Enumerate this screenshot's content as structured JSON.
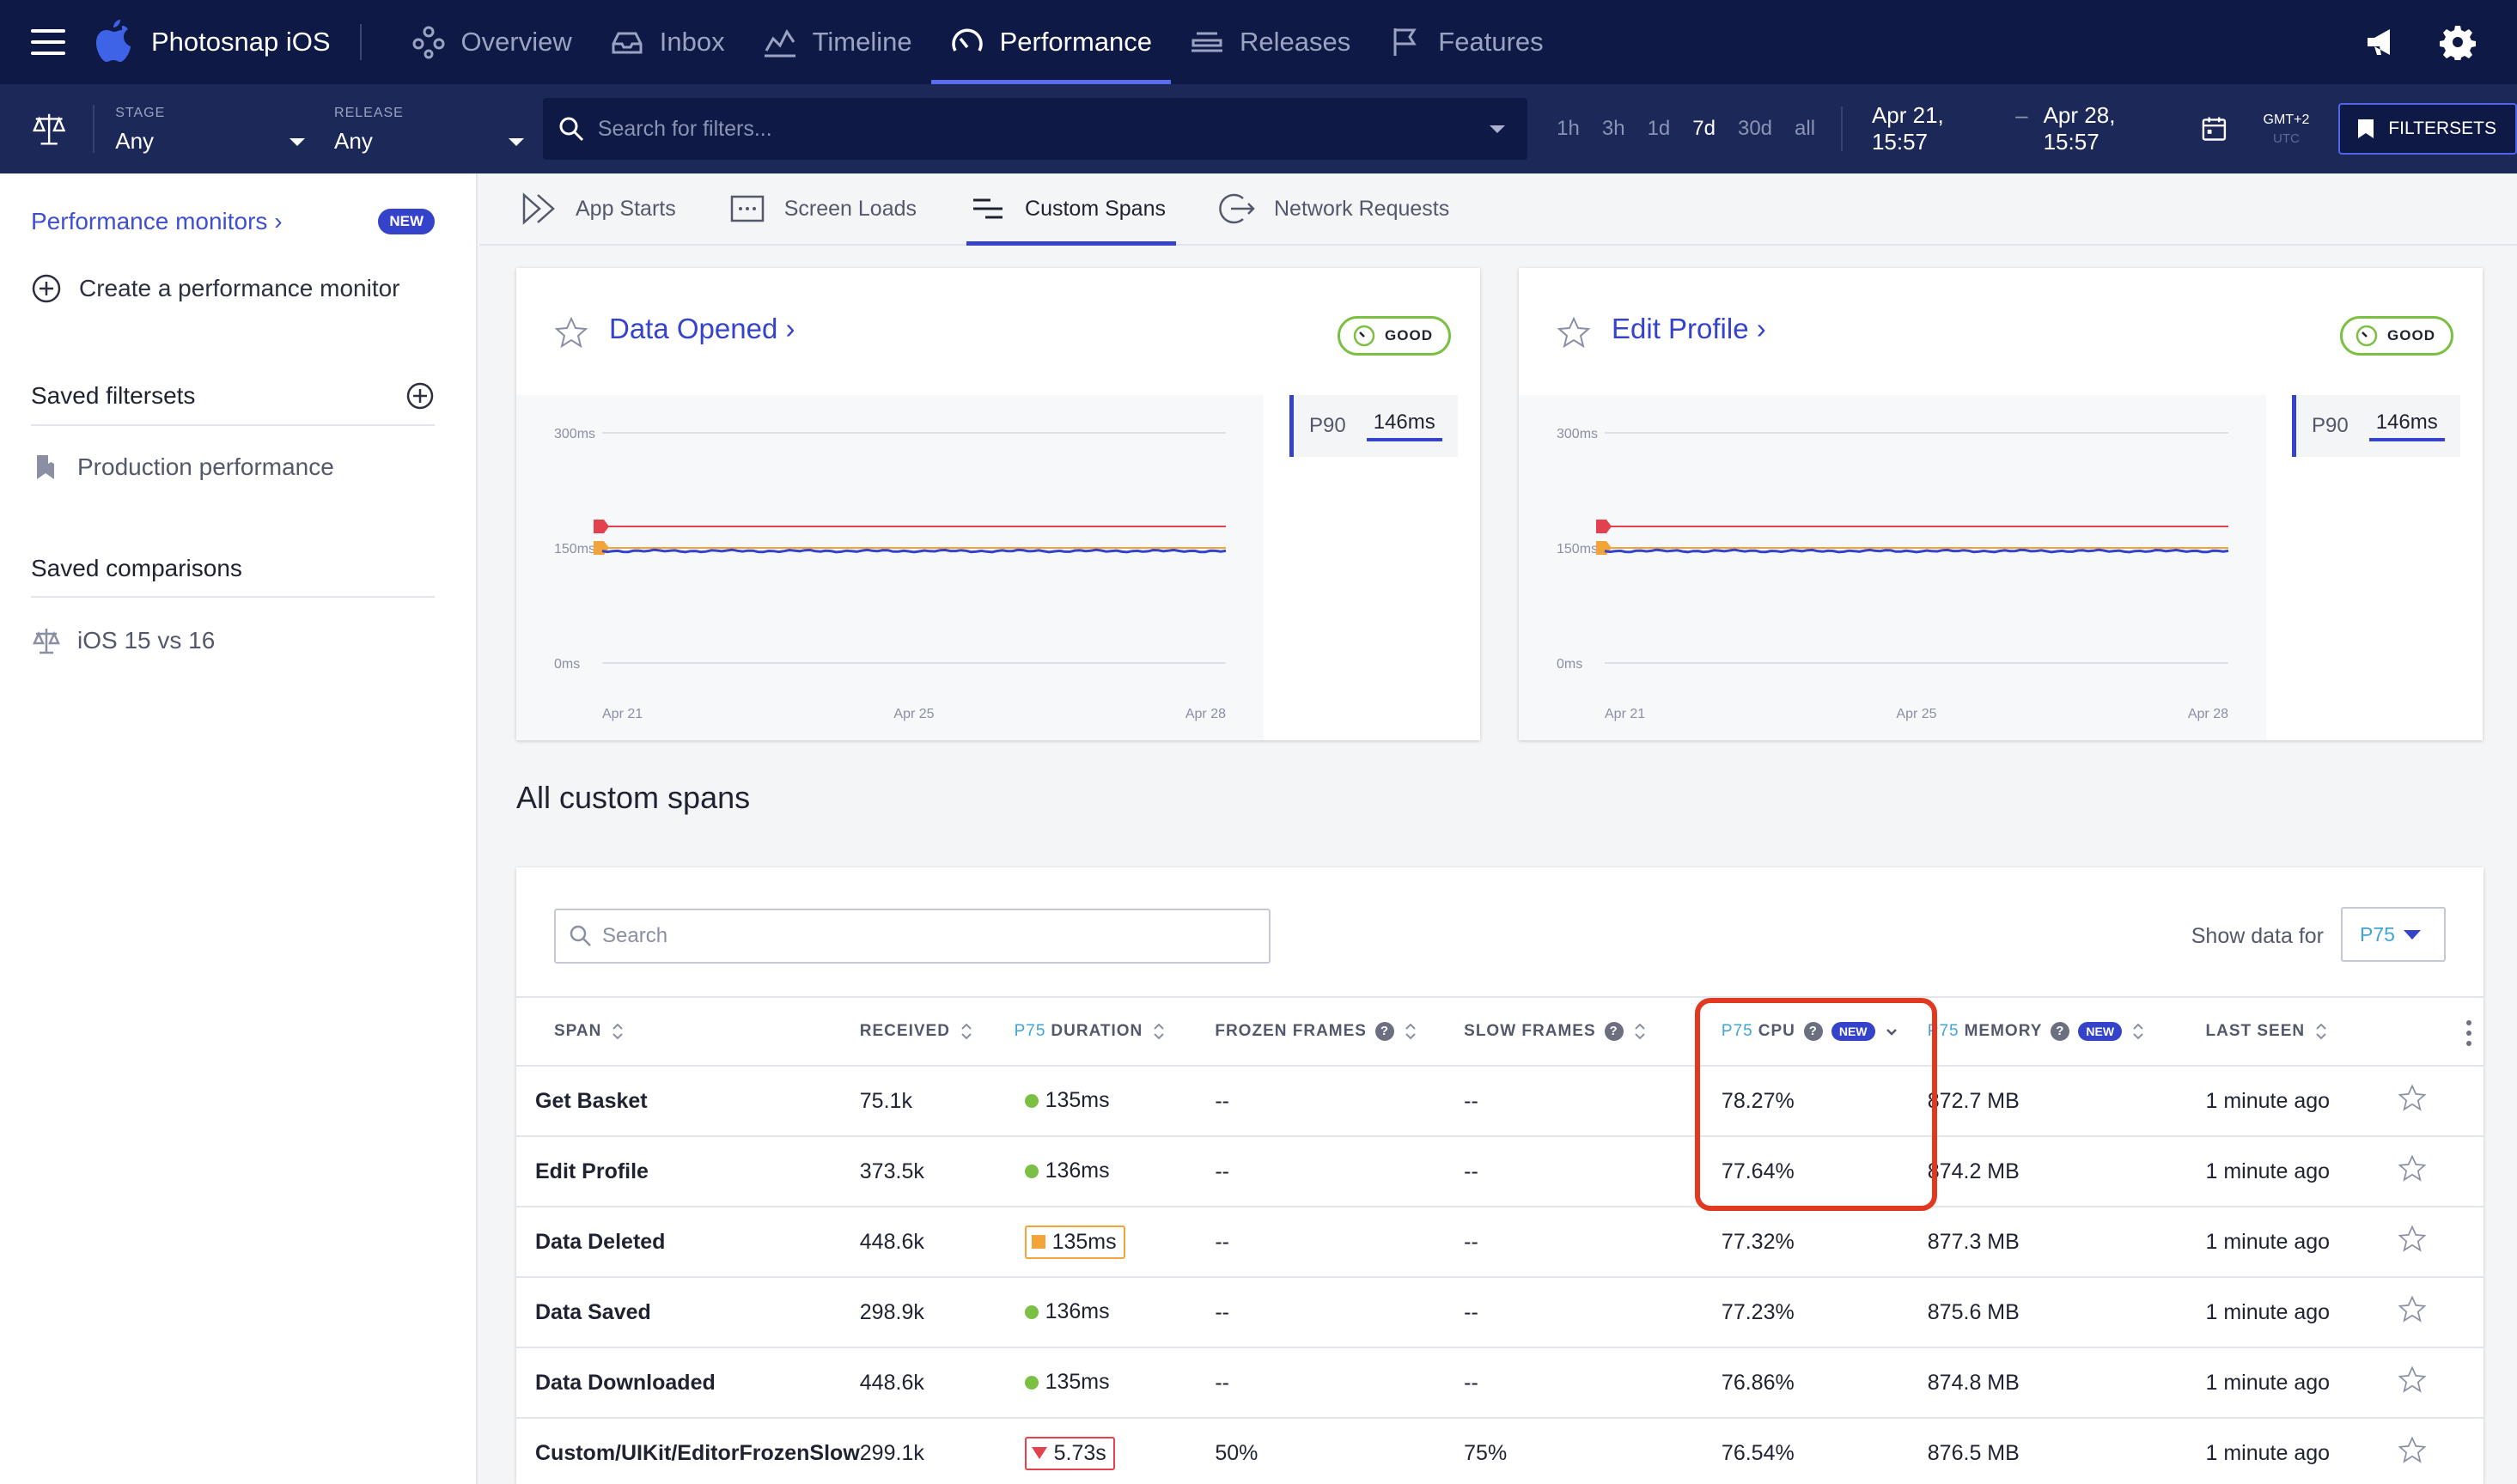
{
  "app": {
    "name": "Photosnap iOS"
  },
  "nav": {
    "items": [
      {
        "label": "Overview",
        "icon": "overview-icon"
      },
      {
        "label": "Inbox",
        "icon": "inbox-icon"
      },
      {
        "label": "Timeline",
        "icon": "timeline-icon"
      },
      {
        "label": "Performance",
        "icon": "performance-gauge-icon",
        "active": true
      },
      {
        "label": "Releases",
        "icon": "releases-icon"
      },
      {
        "label": "Features",
        "icon": "flag-icon"
      }
    ]
  },
  "filters": {
    "stage": {
      "label": "STAGE",
      "value": "Any"
    },
    "release": {
      "label": "RELEASE",
      "value": "Any"
    },
    "search_placeholder": "Search for filters...",
    "ranges": [
      "1h",
      "3h",
      "1d",
      "7d",
      "30d",
      "all"
    ],
    "active_range": "7d",
    "date_from": "Apr 21, 15:57",
    "date_sep": "–",
    "date_to": "Apr 28, 15:57",
    "tz": "GMT+2",
    "tz_sub": "UTC",
    "filtersets_label": "FILTERSETS"
  },
  "sidebar": {
    "monitors_link": "Performance monitors ›",
    "new_badge": "NEW",
    "create_monitor": "Create a performance monitor",
    "saved_filtersets": "Saved filtersets",
    "filterset_item": "Production performance",
    "saved_comparisons": "Saved comparisons",
    "comparison_item": "iOS 15 vs 16"
  },
  "subtabs": [
    {
      "label": "App Starts"
    },
    {
      "label": "Screen Loads"
    },
    {
      "label": "Custom Spans",
      "active": true
    },
    {
      "label": "Network Requests"
    }
  ],
  "cards": [
    {
      "title": "Data Opened ›",
      "status": "GOOD",
      "metric_label": "P90",
      "metric_value": "146ms",
      "y_ticks": [
        "300ms",
        "150ms",
        "0ms"
      ],
      "x_ticks": [
        "Apr 21",
        "Apr 25",
        "Apr 28"
      ]
    },
    {
      "title": "Edit Profile ›",
      "status": "GOOD",
      "metric_label": "P90",
      "metric_value": "146ms",
      "y_ticks": [
        "300ms",
        "150ms",
        "0ms"
      ],
      "x_ticks": [
        "Apr 21",
        "Apr 25",
        "Apr 28"
      ]
    }
  ],
  "chart_data": [
    {
      "type": "line",
      "x": [
        "Apr 21",
        "Apr 25",
        "Apr 28"
      ],
      "ylim": [
        0,
        300
      ],
      "series": [
        {
          "values": [
            146,
            146,
            146
          ]
        }
      ],
      "thresholds": [
        178,
        150
      ],
      "colors": {
        "series": "#3443c9",
        "critical": "#e3414d",
        "warning": "#f2a33a"
      }
    },
    {
      "type": "line",
      "x": [
        "Apr 21",
        "Apr 25",
        "Apr 28"
      ],
      "ylim": [
        0,
        300
      ],
      "series": [
        {
          "values": [
            146,
            146,
            146
          ]
        }
      ],
      "thresholds": [
        178,
        150
      ],
      "colors": {
        "series": "#3443c9",
        "critical": "#e3414d",
        "warning": "#f2a33a"
      }
    }
  ],
  "table": {
    "section_title": "All custom spans",
    "search_placeholder": "Search",
    "show_data_for": "Show data for",
    "percentile": "P75",
    "columns": {
      "span": "SPAN",
      "received": "RECEIVED",
      "duration_prefix": "P75",
      "duration": "DURATION",
      "frozen": "FROZEN FRAMES",
      "slow": "SLOW FRAMES",
      "cpu_prefix": "P75",
      "cpu": "CPU",
      "memory_prefix": "P75",
      "memory": "MEMORY",
      "new_badge": "NEW",
      "last_seen": "LAST SEEN"
    },
    "rows": [
      {
        "span": "Get Basket",
        "received": "75.1k",
        "duration": "135ms",
        "duration_status": "good",
        "frozen": "--",
        "slow": "--",
        "cpu": "78.27%",
        "memory": "872.7 MB",
        "last_seen": "1 minute ago"
      },
      {
        "span": "Edit Profile",
        "received": "373.5k",
        "duration": "136ms",
        "duration_status": "good",
        "frozen": "--",
        "slow": "--",
        "cpu": "77.64%",
        "memory": "874.2 MB",
        "last_seen": "1 minute ago"
      },
      {
        "span": "Data Deleted",
        "received": "448.6k",
        "duration": "135ms",
        "duration_status": "warning",
        "frozen": "--",
        "slow": "--",
        "cpu": "77.32%",
        "memory": "877.3 MB",
        "last_seen": "1 minute ago"
      },
      {
        "span": "Data Saved",
        "received": "298.9k",
        "duration": "136ms",
        "duration_status": "good",
        "frozen": "--",
        "slow": "--",
        "cpu": "77.23%",
        "memory": "875.6 MB",
        "last_seen": "1 minute ago"
      },
      {
        "span": "Data Downloaded",
        "received": "448.6k",
        "duration": "135ms",
        "duration_status": "good",
        "frozen": "--",
        "slow": "--",
        "cpu": "76.86%",
        "memory": "874.8 MB",
        "last_seen": "1 minute ago"
      },
      {
        "span": "Custom/UIKit/EditorFrozenSlow",
        "received": "299.1k",
        "duration": "5.73s",
        "duration_status": "bad",
        "frozen": "50%",
        "slow": "75%",
        "cpu": "76.54%",
        "memory": "876.5 MB",
        "last_seen": "1 minute ago"
      }
    ]
  }
}
